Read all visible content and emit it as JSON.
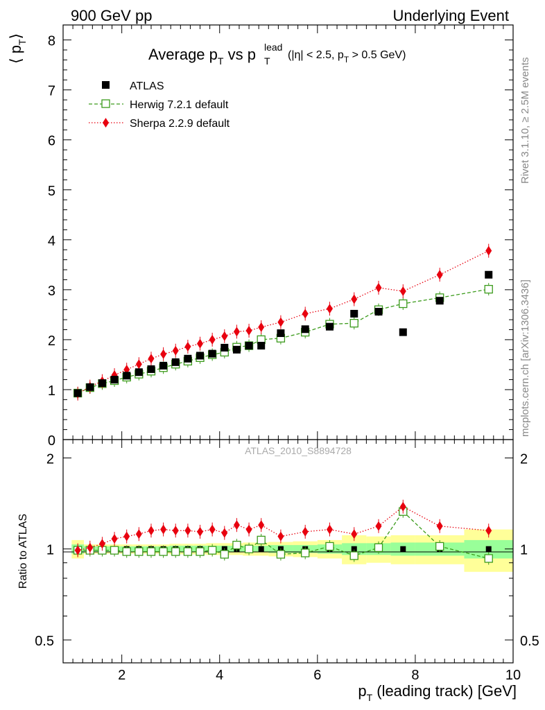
{
  "header": {
    "left": "900 GeV pp",
    "right": "Underlying Event"
  },
  "side_labels": {
    "rivet": "Rivet 3.1.10, ≥ 2.5M events",
    "mcplots": "mcplots.cern.ch [arXiv:1306.3436]"
  },
  "watermark": "ATLAS_2010_S8894728",
  "colors": {
    "data": "#000000",
    "herwig": "#3a9a1a",
    "sherpa": "#e8000f",
    "band_inner": "#99ff99",
    "band_outer": "#ffff99"
  },
  "chart_data": [
    {
      "type": "scatter",
      "title": {
        "pre": "Average p",
        "sub1": "T",
        "mid": " vs p",
        "sup2": "lead",
        "sub2": "T",
        "cut_pre": "(|η| < 2.5, p",
        "cut_sub": "T",
        "cut_post": " > 0.5 GeV)"
      },
      "ylabel": {
        "main": "⟨ p",
        "sub": "T",
        "close": "⟩"
      },
      "ylim": [
        0,
        8.3
      ],
      "xlim": [
        0.8,
        10
      ],
      "yticks": [
        "0",
        "1",
        "2",
        "3",
        "4",
        "5",
        "6",
        "7",
        "8"
      ],
      "legend_position": "top-left",
      "x": [
        1.1,
        1.35,
        1.6,
        1.85,
        2.1,
        2.35,
        2.6,
        2.85,
        3.1,
        3.35,
        3.6,
        3.85,
        4.1,
        4.35,
        4.6,
        4.85,
        5.25,
        5.75,
        6.25,
        6.75,
        7.25,
        7.75,
        8.5,
        9.5
      ],
      "series": [
        {
          "name": "ATLAS",
          "key": "data",
          "values": [
            0.93,
            1.05,
            1.13,
            1.2,
            1.28,
            1.35,
            1.41,
            1.48,
            1.55,
            1.62,
            1.68,
            1.72,
            1.84,
            1.8,
            1.88,
            1.88,
            2.13,
            2.21,
            2.26,
            2.52,
            2.56,
            2.15,
            2.78,
            3.3
          ]
        },
        {
          "name": "Herwig 7.2.1 default",
          "key": "herwig",
          "values": [
            0.93,
            1.04,
            1.12,
            1.18,
            1.25,
            1.31,
            1.37,
            1.44,
            1.51,
            1.57,
            1.64,
            1.7,
            1.75,
            1.85,
            1.88,
            2.0,
            2.03,
            2.15,
            2.31,
            2.33,
            2.6,
            2.72,
            2.84,
            3.01
          ]
        },
        {
          "name": "Sherpa 2.2.9 default",
          "key": "sherpa",
          "values": [
            0.92,
            1.06,
            1.17,
            1.29,
            1.4,
            1.51,
            1.62,
            1.71,
            1.78,
            1.86,
            1.92,
            2.0,
            2.07,
            2.16,
            2.18,
            2.25,
            2.35,
            2.52,
            2.62,
            2.81,
            3.04,
            2.97,
            3.3,
            3.78
          ]
        }
      ]
    },
    {
      "type": "scatter",
      "ylabel": "Ratio to ATLAS",
      "ylim": [
        0.42,
        2.3
      ],
      "ylog": true,
      "yticks": [
        "0.5",
        "1",
        "2"
      ],
      "xlim": [
        0.8,
        10
      ],
      "xticks": [
        "2",
        "4",
        "6",
        "8",
        "10"
      ],
      "xlabel": {
        "main": "p",
        "sub": "T",
        "rest": " (leading track) [GeV]"
      },
      "x": [
        1.1,
        1.35,
        1.6,
        1.85,
        2.1,
        2.35,
        2.6,
        2.85,
        3.1,
        3.35,
        3.6,
        3.85,
        4.1,
        4.35,
        4.6,
        4.85,
        5.25,
        5.75,
        6.25,
        6.75,
        7.25,
        7.75,
        8.5,
        9.5
      ],
      "bin_edges": [
        0.975,
        1.225,
        1.475,
        1.725,
        1.975,
        2.225,
        2.475,
        2.725,
        2.975,
        3.225,
        3.475,
        3.725,
        3.975,
        4.225,
        4.475,
        4.725,
        5.0,
        5.5,
        6.0,
        6.5,
        7.0,
        7.5,
        8.0,
        9.0,
        10.0
      ],
      "band_inner_halfwidth": [
        0.035,
        0.02,
        0.02,
        0.02,
        0.02,
        0.02,
        0.02,
        0.02,
        0.025,
        0.025,
        0.025,
        0.025,
        0.025,
        0.025,
        0.025,
        0.025,
        0.03,
        0.03,
        0.035,
        0.045,
        0.045,
        0.05,
        0.05,
        0.07
      ],
      "band_outer_halfwidth": [
        0.07,
        0.035,
        0.035,
        0.035,
        0.035,
        0.035,
        0.035,
        0.035,
        0.04,
        0.04,
        0.04,
        0.045,
        0.045,
        0.045,
        0.05,
        0.05,
        0.055,
        0.06,
        0.07,
        0.11,
        0.1,
        0.11,
        0.11,
        0.16
      ],
      "series": [
        {
          "name": "Herwig 7.2.1 default",
          "key": "herwig",
          "values": [
            0.99,
            0.99,
            0.99,
            0.99,
            0.98,
            0.98,
            0.98,
            0.98,
            0.98,
            0.98,
            0.98,
            0.99,
            0.96,
            1.03,
            1.0,
            1.07,
            0.96,
            0.97,
            1.02,
            0.95,
            1.01,
            1.33,
            1.02,
            0.93
          ]
        },
        {
          "name": "Sherpa 2.2.9 default",
          "key": "sherpa",
          "values": [
            0.99,
            1.01,
            1.04,
            1.08,
            1.1,
            1.12,
            1.15,
            1.16,
            1.15,
            1.15,
            1.14,
            1.16,
            1.13,
            1.2,
            1.16,
            1.2,
            1.1,
            1.14,
            1.16,
            1.12,
            1.19,
            1.38,
            1.19,
            1.15
          ]
        }
      ]
    }
  ]
}
